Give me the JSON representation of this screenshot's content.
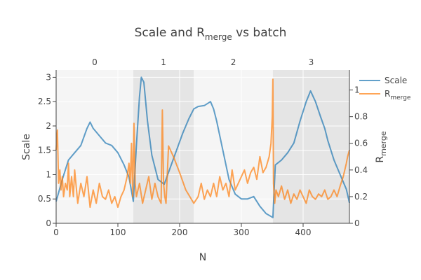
{
  "chart_data": {
    "type": "line",
    "title_main": "Scale and R",
    "title_sub": "merge",
    "title_tail": " vs batch",
    "xlabel": "N",
    "ylabel_left": "Scale",
    "ylabel_right_main": "R",
    "ylabel_right_sub": "merge",
    "xlim": [
      0,
      475
    ],
    "ylim_left": [
      0,
      3.15
    ],
    "ylim_right": [
      0,
      1.15
    ],
    "x_ticks": [
      "0",
      "100",
      "200",
      "300",
      "400"
    ],
    "y_left_ticks": [
      "0",
      "0.5",
      "1",
      "1.5",
      "2",
      "2.5",
      "3"
    ],
    "y_right_ticks": [
      "0",
      "0.2",
      "0.4",
      "0.6",
      "0.8",
      "1"
    ],
    "batches": [
      {
        "label": "0",
        "start": 0,
        "end": 125
      },
      {
        "label": "1",
        "start": 125,
        "end": 223
      },
      {
        "label": "2",
        "start": 223,
        "end": 351
      },
      {
        "label": "3",
        "start": 351,
        "end": 475
      }
    ],
    "legend": {
      "position": "right",
      "items": [
        "Scale",
        "R"
      ],
      "r_sub": "merge"
    },
    "colors": {
      "scale": "#1f77b4",
      "rmerge": "#ff7f0e",
      "shade_odd": "#e5e5e5",
      "shade_even": "#f5f5f5"
    },
    "series": [
      {
        "name": "Scale",
        "axis": "left",
        "x": [
          0,
          10,
          20,
          30,
          40,
          50,
          55,
          60,
          70,
          80,
          90,
          100,
          110,
          118,
          125,
          130,
          135,
          138,
          142,
          148,
          155,
          165,
          175,
          185,
          195,
          205,
          215,
          223,
          230,
          240,
          250,
          255,
          260,
          270,
          280,
          290,
          300,
          310,
          320,
          330,
          340,
          351,
          355,
          365,
          375,
          385,
          395,
          405,
          412,
          420,
          428,
          435,
          440,
          450,
          460,
          470,
          475
        ],
        "y": [
          0.45,
          0.9,
          1.3,
          1.45,
          1.6,
          1.95,
          2.08,
          1.95,
          1.8,
          1.65,
          1.6,
          1.45,
          1.2,
          0.95,
          0.45,
          1.6,
          2.6,
          3.0,
          2.9,
          2.1,
          1.4,
          0.9,
          0.8,
          1.15,
          1.5,
          1.85,
          2.15,
          2.35,
          2.4,
          2.42,
          2.5,
          2.35,
          2.1,
          1.5,
          0.9,
          0.6,
          0.5,
          0.5,
          0.55,
          0.35,
          0.2,
          0.12,
          1.2,
          1.3,
          1.45,
          1.65,
          2.1,
          2.5,
          2.72,
          2.5,
          2.2,
          1.95,
          1.7,
          1.3,
          1.0,
          0.7,
          0.42
        ]
      },
      {
        "name": "R",
        "axis": "right",
        "x": [
          0,
          2,
          4,
          6,
          8,
          10,
          12,
          15,
          18,
          20,
          22,
          25,
          28,
          30,
          35,
          40,
          45,
          50,
          55,
          60,
          65,
          70,
          75,
          80,
          85,
          90,
          95,
          100,
          105,
          110,
          115,
          118,
          120,
          122,
          124,
          126,
          128,
          130,
          135,
          140,
          145,
          150,
          155,
          160,
          165,
          170,
          172,
          174,
          176,
          178,
          182,
          190,
          200,
          210,
          223,
          230,
          235,
          240,
          245,
          250,
          255,
          260,
          265,
          270,
          275,
          280,
          285,
          290,
          295,
          300,
          305,
          310,
          315,
          320,
          325,
          330,
          335,
          340,
          345,
          348,
          350,
          351,
          352,
          354,
          356,
          360,
          365,
          370,
          375,
          380,
          385,
          390,
          395,
          400,
          405,
          410,
          415,
          420,
          425,
          430,
          435,
          440,
          445,
          450,
          455,
          460,
          465,
          470,
          472,
          475
        ],
        "y": [
          0.55,
          0.7,
          0.3,
          0.4,
          0.25,
          0.35,
          0.2,
          0.3,
          0.25,
          0.45,
          0.2,
          0.35,
          0.2,
          0.4,
          0.15,
          0.3,
          0.2,
          0.35,
          0.12,
          0.25,
          0.15,
          0.3,
          0.2,
          0.18,
          0.25,
          0.15,
          0.2,
          0.12,
          0.2,
          0.25,
          0.35,
          0.45,
          0.3,
          0.6,
          0.2,
          0.75,
          0.3,
          0.2,
          0.3,
          0.15,
          0.25,
          0.35,
          0.18,
          0.3,
          0.2,
          0.15,
          0.85,
          0.3,
          0.2,
          0.15,
          0.58,
          0.5,
          0.38,
          0.25,
          0.15,
          0.2,
          0.3,
          0.18,
          0.25,
          0.2,
          0.3,
          0.2,
          0.35,
          0.25,
          0.3,
          0.2,
          0.4,
          0.25,
          0.3,
          0.35,
          0.4,
          0.3,
          0.38,
          0.42,
          0.33,
          0.5,
          0.38,
          0.42,
          0.5,
          0.6,
          0.8,
          1.08,
          0.3,
          0.15,
          0.25,
          0.2,
          0.28,
          0.18,
          0.25,
          0.15,
          0.22,
          0.18,
          0.25,
          0.2,
          0.15,
          0.25,
          0.2,
          0.18,
          0.22,
          0.2,
          0.25,
          0.18,
          0.2,
          0.25,
          0.2,
          0.28,
          0.35,
          0.45,
          0.5,
          0.55
        ]
      }
    ]
  }
}
